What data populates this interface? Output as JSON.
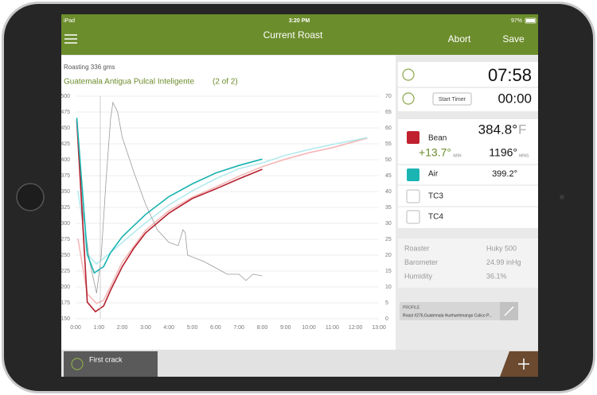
{
  "status_bar": {
    "device": "iPad",
    "time": "3:20 PM",
    "battery": "97%"
  },
  "header": {
    "title": "Current Roast",
    "actions": [
      "Abort",
      "Save"
    ]
  },
  "chart_data": {
    "type": "line",
    "subtitle": "Roasting 336 gms",
    "title": "Guatemala Antigua Pulcal Inteligente",
    "title_note": "(2 of 2)",
    "xlim": [
      0,
      13
    ],
    "xticks": [
      {
        "value": 0,
        "label": "0:00"
      },
      {
        "value": 1,
        "label": "1:00"
      },
      {
        "value": 2,
        "label": "2:00"
      },
      {
        "value": 3,
        "label": "3:00"
      },
      {
        "value": 4,
        "label": "4:00"
      },
      {
        "value": 5,
        "label": "5:00"
      },
      {
        "value": 6,
        "label": "6:00"
      },
      {
        "value": 7,
        "label": "7:00"
      },
      {
        "value": 8,
        "label": "8:00"
      },
      {
        "value": 9,
        "label": "9:00"
      },
      {
        "value": 10,
        "label": "10:00"
      },
      {
        "value": 11,
        "label": "11:00"
      },
      {
        "value": 12,
        "label": "12:00"
      },
      {
        "value": 13,
        "label": "13:00"
      }
    ],
    "ylim": [
      150,
      500
    ],
    "yticks": [
      150,
      175,
      200,
      225,
      250,
      275,
      300,
      325,
      350,
      375,
      400,
      425,
      450,
      475,
      500
    ],
    "y2lim": [
      0,
      70
    ],
    "y2ticks": [
      0,
      5,
      10,
      15,
      20,
      25,
      30,
      35,
      40,
      45,
      50,
      55,
      60,
      65,
      70
    ],
    "grid": true,
    "series": [
      {
        "color": "#f5b8b8",
        "x": [
          0.1,
          0.5,
          0.9,
          1.2,
          1.5,
          2,
          3,
          4,
          5,
          6,
          7,
          8,
          9,
          10,
          11,
          12,
          12.5
        ],
        "values": [
          276,
          189,
          174,
          179,
          201,
          239,
          289,
          320,
          341,
          357,
          374,
          389,
          401,
          411,
          419,
          429,
          434
        ]
      },
      {
        "color": "#b3eaee",
        "x": [
          0.1,
          0.5,
          0.9,
          1.5,
          2,
          3,
          4,
          5,
          6,
          7,
          8,
          9,
          10,
          11,
          12,
          12.5
        ],
        "values": [
          351,
          251,
          236,
          254,
          270,
          301,
          329,
          351,
          370,
          386,
          395,
          407,
          416,
          424,
          431,
          435
        ]
      },
      {
        "color": "#9a9a9a",
        "axis": "y2",
        "x": [
          0.05,
          0.3,
          0.6,
          0.9,
          1.1,
          1.3,
          1.5,
          1.6,
          1.8,
          2,
          2.5,
          3,
          3.5,
          4,
          4.4,
          4.6,
          4.7,
          4.8,
          5.5,
          6,
          6.5,
          7,
          7.3,
          7.6,
          8
        ],
        "values": [
          62,
          34,
          18,
          8,
          20,
          43,
          63,
          68,
          65,
          57,
          46,
          36,
          28,
          24,
          23,
          28,
          27,
          20,
          18,
          16,
          14,
          14,
          12,
          14,
          13.5
        ]
      },
      {
        "color": "#b5202e",
        "x": [
          0.05,
          0.5,
          0.85,
          1.2,
          1.5,
          2,
          2.5,
          3,
          4,
          5,
          6,
          7,
          8
        ],
        "values": [
          462,
          176,
          161,
          170,
          195,
          232,
          261,
          285,
          316,
          339,
          354,
          370,
          385
        ]
      },
      {
        "color": "#17b3b0",
        "x": [
          0.05,
          0.5,
          0.8,
          1.2,
          1.5,
          2,
          3,
          4,
          5,
          6,
          7,
          8
        ],
        "values": [
          466,
          251,
          222,
          232,
          254,
          279,
          314,
          342,
          362,
          379,
          391,
          401
        ]
      }
    ]
  },
  "readings": {
    "elapsed": "07:58",
    "timer_button": "Start Timer",
    "timer": "00:00",
    "probes": [
      {
        "name": "Bean",
        "color": "#c0212f",
        "value": "384.8°",
        "unit": "F",
        "rate": "+13.7°",
        "rate_unit": "/MIN",
        "projected": "1196°",
        "projected_unit": "MINS"
      },
      {
        "name": "Air",
        "color": "#1ab5b3",
        "value": "399.2°"
      },
      {
        "name": "TC3"
      },
      {
        "name": "TC4"
      }
    ]
  },
  "info": [
    [
      "Roaster",
      "Huky 500"
    ],
    [
      "Barometer",
      "24.99 inHg"
    ],
    [
      "Humidity",
      "36.1%"
    ]
  ],
  "profile": {
    "label": "PROFILE",
    "name": "Roast #276,Guatemala Huehuetenango Culico P..."
  },
  "footer": {
    "event_button": "First crack"
  }
}
